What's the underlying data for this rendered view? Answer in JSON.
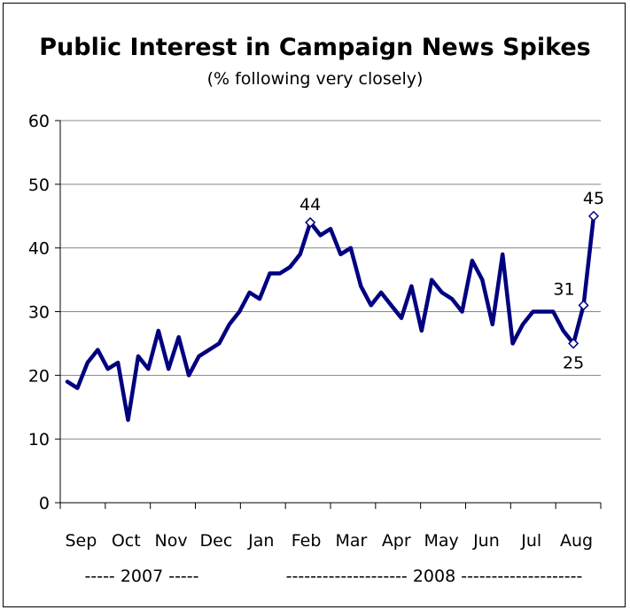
{
  "chart_data": {
    "type": "line",
    "title": "Public Interest in Campaign News Spikes",
    "subtitle": "(% following very closely)",
    "xlabel": "",
    "ylabel": "",
    "ylim": [
      0,
      60
    ],
    "yticks": [
      "0",
      "10",
      "20",
      "30",
      "40",
      "50",
      "60"
    ],
    "grid": true,
    "month_labels": [
      "Sep",
      "Oct",
      "Nov",
      "Dec",
      "Jan",
      "Feb",
      "Mar",
      "Apr",
      "May",
      "Jun",
      "Jul",
      "Aug"
    ],
    "year_labels": [
      "----- 2007 -----",
      "-------------------- 2008 --------------------"
    ],
    "line_color": "#000080",
    "series": [
      {
        "values": [
          19,
          18,
          22,
          24,
          21,
          22,
          13,
          23,
          21,
          27,
          21,
          26,
          20,
          23,
          24,
          25,
          28,
          30,
          33,
          32,
          36,
          36,
          37,
          39,
          44,
          42,
          43,
          39,
          40,
          34,
          31,
          33,
          31,
          29,
          34,
          27,
          35,
          33,
          32,
          30,
          38,
          35,
          28,
          39,
          25,
          28,
          30,
          30,
          30,
          27,
          25,
          31,
          45
        ]
      }
    ],
    "annotations": [
      {
        "index": 24,
        "label": "44",
        "position": "above"
      },
      {
        "index": 50,
        "label": "25",
        "position": "below"
      },
      {
        "index": 51,
        "label": "31",
        "position": "left"
      },
      {
        "index": 52,
        "label": "45",
        "position": "above"
      }
    ]
  }
}
